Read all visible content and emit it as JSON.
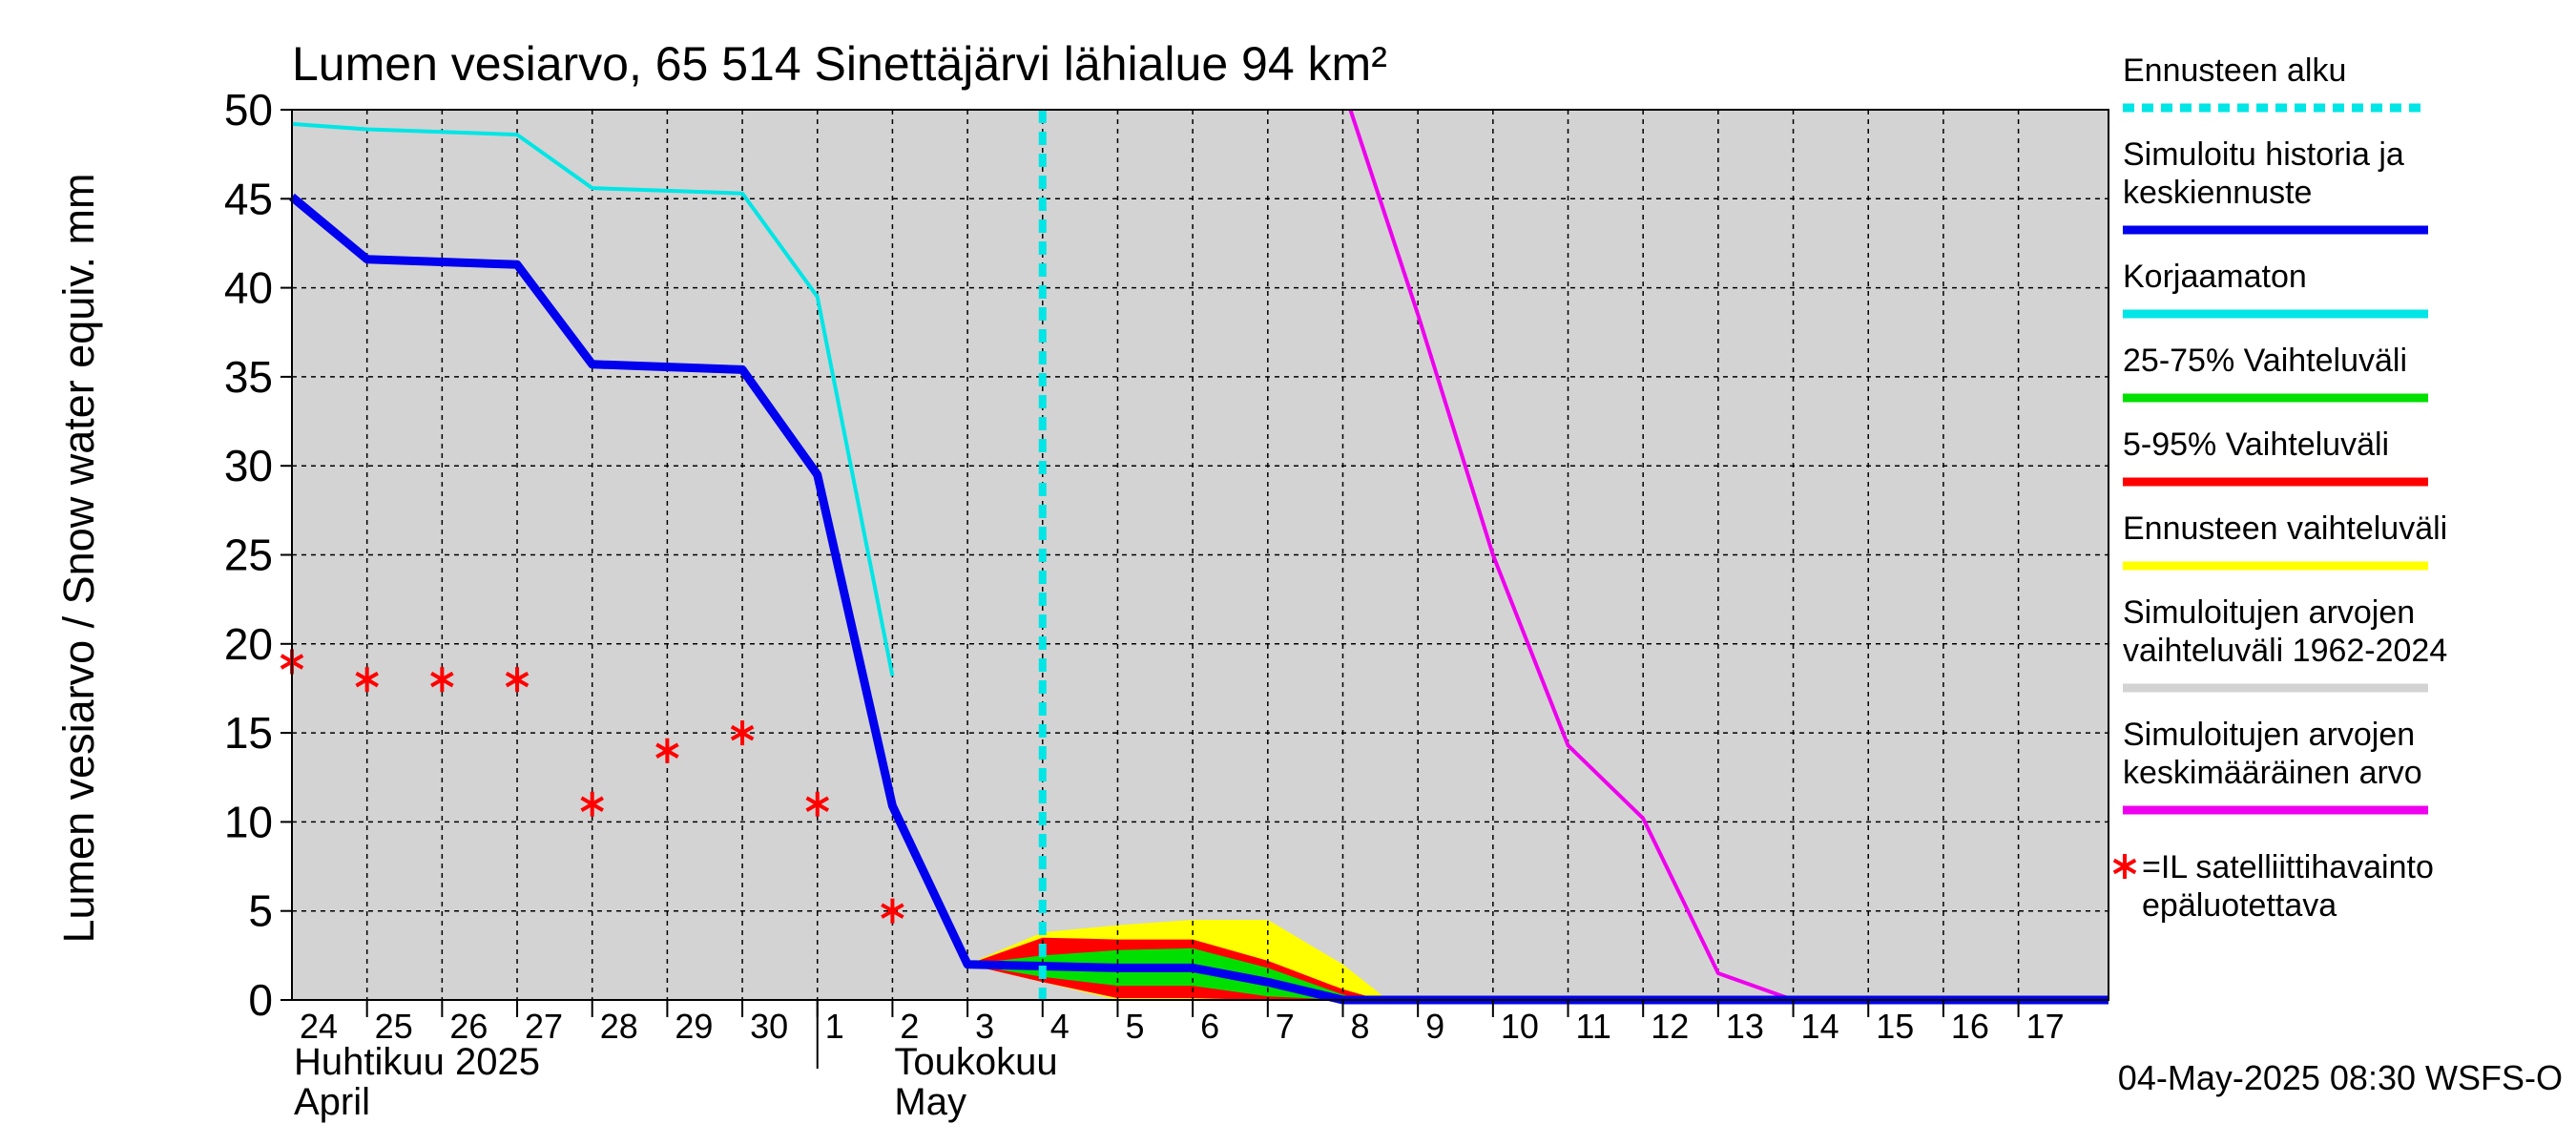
{
  "chart_data": {
    "type": "line",
    "title": "Lumen vesiarvo, 65 514 Sinettäjärvi lähialue 94 km²",
    "ylabel": "Lumen vesiarvo / Snow water equiv.    mm",
    "ylim": [
      0,
      50
    ],
    "yticks": [
      0,
      5,
      10,
      15,
      20,
      25,
      30,
      35,
      40,
      45,
      50
    ],
    "x_range": [
      0,
      24.2
    ],
    "day_labels": [
      {
        "x": 0,
        "label": "24"
      },
      {
        "x": 1,
        "label": "25"
      },
      {
        "x": 2,
        "label": "26"
      },
      {
        "x": 3,
        "label": "27"
      },
      {
        "x": 4,
        "label": "28"
      },
      {
        "x": 5,
        "label": "29"
      },
      {
        "x": 6,
        "label": "30"
      },
      {
        "x": 7,
        "label": "1"
      },
      {
        "x": 8,
        "label": "2"
      },
      {
        "x": 9,
        "label": "3"
      },
      {
        "x": 10,
        "label": "4"
      },
      {
        "x": 11,
        "label": "5"
      },
      {
        "x": 12,
        "label": "6"
      },
      {
        "x": 13,
        "label": "7"
      },
      {
        "x": 14,
        "label": "8"
      },
      {
        "x": 15,
        "label": "9"
      },
      {
        "x": 16,
        "label": "10"
      },
      {
        "x": 17,
        "label": "11"
      },
      {
        "x": 18,
        "label": "12"
      },
      {
        "x": 19,
        "label": "13"
      },
      {
        "x": 20,
        "label": "14"
      },
      {
        "x": 21,
        "label": "15"
      },
      {
        "x": 22,
        "label": "16"
      },
      {
        "x": 23,
        "label": "17"
      }
    ],
    "month_labels": [
      {
        "x": 0,
        "fi": "Huhtikuu  2025",
        "en": "April"
      },
      {
        "x": 8,
        "fi": "Toukokuu",
        "en": "May"
      }
    ],
    "month_boundary_x": 7,
    "forecast_start_x": 10,
    "series": [
      {
        "name": "Simuloitujen arvojen vaihteluväli 1962-2024",
        "kind": "band",
        "color": "#d3d3d3",
        "upper": [
          [
            0,
            50
          ],
          [
            24.2,
            50
          ]
        ],
        "lower": [
          [
            0,
            0
          ],
          [
            24.2,
            0
          ]
        ]
      },
      {
        "name": "Ennusteen vaihteluväli",
        "kind": "band",
        "color": "#ffff00",
        "upper": [
          [
            9,
            2
          ],
          [
            10,
            3.8
          ],
          [
            11,
            4.2
          ],
          [
            12,
            4.5
          ],
          [
            13,
            4.5
          ],
          [
            14,
            2
          ],
          [
            14.6,
            0
          ]
        ],
        "lower": [
          [
            9,
            2
          ],
          [
            10,
            1
          ],
          [
            11,
            0
          ],
          [
            12,
            0
          ],
          [
            13,
            0
          ],
          [
            14,
            0
          ],
          [
            14.6,
            0
          ]
        ]
      },
      {
        "name": "5-95% Vaihteluväli",
        "kind": "band",
        "color": "#ff0000",
        "upper": [
          [
            9,
            2
          ],
          [
            10,
            3.5
          ],
          [
            11,
            3.4
          ],
          [
            12,
            3.4
          ],
          [
            13,
            2.2
          ],
          [
            14,
            0.6
          ],
          [
            14.5,
            0
          ]
        ],
        "lower": [
          [
            9,
            2
          ],
          [
            10,
            1
          ],
          [
            11,
            0.1
          ],
          [
            12,
            0.1
          ],
          [
            13,
            0
          ],
          [
            14,
            0
          ],
          [
            14.5,
            0
          ]
        ]
      },
      {
        "name": "25-75% Vaihteluväli",
        "kind": "band",
        "color": "#00e000",
        "upper": [
          [
            9,
            2
          ],
          [
            10,
            2.5
          ],
          [
            11,
            2.8
          ],
          [
            12,
            2.9
          ],
          [
            13,
            1.8
          ],
          [
            14,
            0.3
          ],
          [
            14.3,
            0
          ]
        ],
        "lower": [
          [
            9,
            2
          ],
          [
            10,
            1.3
          ],
          [
            11,
            0.8
          ],
          [
            12,
            0.8
          ],
          [
            13,
            0.2
          ],
          [
            14,
            0
          ],
          [
            14.3,
            0
          ]
        ]
      },
      {
        "name": "Simuloitujen arvojen keskimääräinen arvo",
        "kind": "line",
        "color": "#ee00ee",
        "width": 4,
        "points": [
          [
            14.1,
            50
          ],
          [
            15,
            38.5
          ],
          [
            16,
            25
          ],
          [
            17,
            14.3
          ],
          [
            18,
            10.2
          ],
          [
            19,
            1.5
          ],
          [
            20,
            0
          ],
          [
            24.2,
            0
          ]
        ]
      },
      {
        "name": "Korjaamaton",
        "kind": "line",
        "color": "#00e5e5",
        "width": 4,
        "points": [
          [
            0,
            49.2
          ],
          [
            1,
            48.9
          ],
          [
            3,
            48.6
          ],
          [
            4,
            45.6
          ],
          [
            6,
            45.3
          ],
          [
            7,
            39.5
          ],
          [
            8,
            18.2
          ]
        ]
      },
      {
        "name": "Simuloitu historia ja keskiennuste",
        "kind": "line",
        "color": "#0000ee",
        "width": 9,
        "points": [
          [
            0,
            45.1
          ],
          [
            1,
            41.6
          ],
          [
            3,
            41.3
          ],
          [
            4,
            35.7
          ],
          [
            6,
            35.4
          ],
          [
            7,
            29.5
          ],
          [
            8,
            10.9
          ],
          [
            9,
            2
          ],
          [
            10,
            1.9
          ],
          [
            11,
            1.8
          ],
          [
            12,
            1.8
          ],
          [
            13,
            1
          ],
          [
            14,
            0
          ],
          [
            24.2,
            0
          ]
        ]
      },
      {
        "name": "=IL satelliittihavainto epäluotettava",
        "kind": "points",
        "color": "#ff0000",
        "points": [
          [
            0,
            19
          ],
          [
            1,
            18
          ],
          [
            2,
            18
          ],
          [
            3,
            18
          ],
          [
            4,
            11
          ],
          [
            5,
            14
          ],
          [
            6,
            15
          ],
          [
            7,
            11
          ],
          [
            8,
            5
          ]
        ]
      }
    ]
  },
  "legend": [
    {
      "lines": [
        "Ennusteen alku"
      ],
      "color": "#00e5e5",
      "style": "dashed",
      "marker": "line"
    },
    {
      "lines": [
        "Simuloitu historia ja",
        "keskiennuste"
      ],
      "color": "#0000ee",
      "style": "solid",
      "marker": "line"
    },
    {
      "lines": [
        "Korjaamaton"
      ],
      "color": "#00e5e5",
      "style": "solid",
      "marker": "line"
    },
    {
      "lines": [
        "25-75% Vaihteluväli"
      ],
      "color": "#00e000",
      "style": "solid",
      "marker": "line"
    },
    {
      "lines": [
        "5-95% Vaihteluväli"
      ],
      "color": "#ff0000",
      "style": "solid",
      "marker": "line"
    },
    {
      "lines": [
        "Ennusteen vaihteluväli"
      ],
      "color": "#ffff00",
      "style": "solid",
      "marker": "line"
    },
    {
      "lines": [
        "Simuloitujen arvojen",
        "vaihteluväli 1962-2024"
      ],
      "color": "#d3d3d3",
      "style": "solid",
      "marker": "line"
    },
    {
      "lines": [
        "Simuloitujen arvojen",
        "keskimääräinen arvo"
      ],
      "color": "#ee00ee",
      "style": "solid",
      "marker": "line"
    },
    {
      "lines": [
        "=IL satelliittihavainto",
        "epäluotettava"
      ],
      "color": "#ff0000",
      "style": "none",
      "marker": "star"
    }
  ],
  "footer": "04-May-2025 08:30 WSFS-O"
}
